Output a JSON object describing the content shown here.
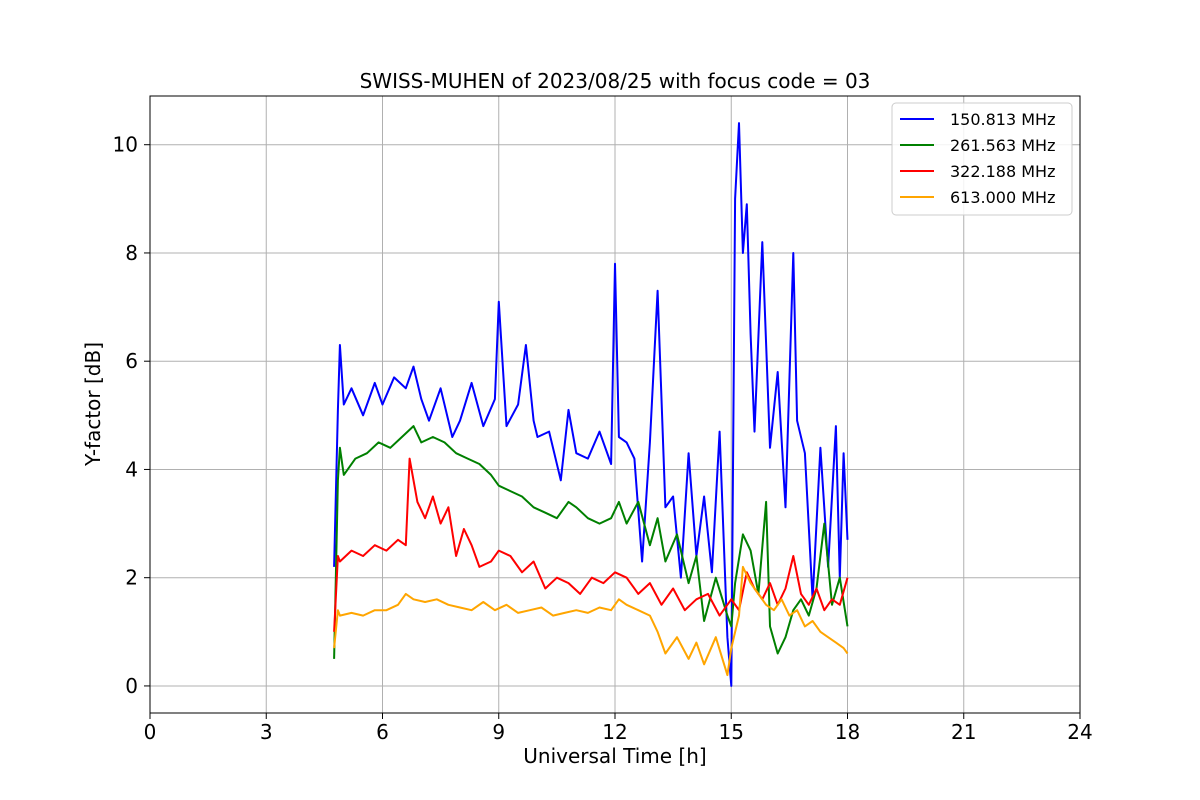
{
  "chart_data": {
    "type": "line",
    "title": "SWISS-MUHEN of 2023/08/25 with focus code = 03",
    "xlabel": "Universal Time [h]",
    "ylabel": "Y-factor [dB]",
    "xlim": [
      0,
      24
    ],
    "ylim": [
      -0.5,
      10.9
    ],
    "xticks": [
      "0",
      "3",
      "6",
      "9",
      "12",
      "15",
      "18",
      "21",
      "24"
    ],
    "yticks": [
      "0",
      "2",
      "4",
      "6",
      "8",
      "10"
    ],
    "grid": true,
    "legend_position": "top-right",
    "series": [
      {
        "name": "150.813 MHz",
        "color": "#0000ff",
        "x": [
          4.75,
          4.85,
          4.9,
          5.0,
          5.2,
          5.5,
          5.8,
          6.0,
          6.3,
          6.6,
          6.8,
          7.0,
          7.2,
          7.5,
          7.8,
          8.0,
          8.3,
          8.6,
          8.9,
          9.0,
          9.2,
          9.5,
          9.7,
          9.9,
          10.0,
          10.3,
          10.6,
          10.8,
          11.0,
          11.3,
          11.6,
          11.9,
          12.0,
          12.1,
          12.3,
          12.5,
          12.7,
          12.9,
          13.1,
          13.3,
          13.5,
          13.7,
          13.9,
          14.1,
          14.3,
          14.5,
          14.7,
          14.9,
          15.0,
          15.1,
          15.2,
          15.3,
          15.4,
          15.5,
          15.6,
          15.8,
          16.0,
          16.2,
          16.4,
          16.6,
          16.7,
          16.9,
          17.1,
          17.3,
          17.5,
          17.7,
          17.8,
          17.9,
          18.0
        ],
        "values": [
          2.2,
          5.1,
          6.3,
          5.2,
          5.5,
          5.0,
          5.6,
          5.2,
          5.7,
          5.5,
          5.9,
          5.3,
          4.9,
          5.5,
          4.6,
          4.9,
          5.6,
          4.8,
          5.3,
          7.1,
          4.8,
          5.2,
          6.3,
          4.9,
          4.6,
          4.7,
          3.8,
          5.1,
          4.3,
          4.2,
          4.7,
          4.1,
          7.8,
          4.6,
          4.5,
          4.2,
          2.3,
          4.5,
          7.3,
          3.3,
          3.5,
          2.0,
          4.3,
          2.4,
          3.5,
          2.1,
          4.7,
          0.9,
          0.0,
          9.0,
          10.4,
          8.0,
          8.9,
          6.5,
          4.7,
          8.2,
          4.4,
          5.8,
          3.3,
          8.0,
          4.9,
          4.3,
          1.6,
          4.4,
          2.2,
          4.8,
          2.0,
          4.3,
          2.7
        ]
      },
      {
        "name": "261.563 MHz",
        "color": "#008000",
        "x": [
          4.75,
          4.85,
          4.9,
          5.0,
          5.3,
          5.6,
          5.9,
          6.2,
          6.5,
          6.8,
          7.0,
          7.3,
          7.6,
          7.9,
          8.2,
          8.5,
          8.8,
          9.0,
          9.3,
          9.6,
          9.9,
          10.2,
          10.5,
          10.8,
          11.0,
          11.3,
          11.6,
          11.9,
          12.1,
          12.3,
          12.6,
          12.9,
          13.1,
          13.3,
          13.6,
          13.9,
          14.1,
          14.3,
          14.6,
          14.9,
          15.0,
          15.1,
          15.3,
          15.5,
          15.7,
          15.9,
          16.0,
          16.2,
          16.4,
          16.6,
          16.8,
          17.0,
          17.2,
          17.4,
          17.6,
          17.8,
          18.0
        ],
        "values": [
          0.5,
          3.8,
          4.4,
          3.9,
          4.2,
          4.3,
          4.5,
          4.4,
          4.6,
          4.8,
          4.5,
          4.6,
          4.5,
          4.3,
          4.2,
          4.1,
          3.9,
          3.7,
          3.6,
          3.5,
          3.3,
          3.2,
          3.1,
          3.4,
          3.3,
          3.1,
          3.0,
          3.1,
          3.4,
          3.0,
          3.4,
          2.6,
          3.1,
          2.3,
          2.8,
          1.9,
          2.4,
          1.2,
          2.0,
          1.3,
          1.1,
          1.9,
          2.8,
          2.5,
          1.7,
          3.4,
          1.1,
          0.6,
          0.9,
          1.4,
          1.6,
          1.3,
          1.8,
          3.0,
          1.5,
          2.0,
          1.1
        ]
      },
      {
        "name": "322.188 MHz",
        "color": "#ff0000",
        "x": [
          4.75,
          4.85,
          4.9,
          5.2,
          5.5,
          5.8,
          6.1,
          6.4,
          6.6,
          6.7,
          6.9,
          7.1,
          7.3,
          7.5,
          7.7,
          7.9,
          8.1,
          8.3,
          8.5,
          8.8,
          9.0,
          9.3,
          9.6,
          9.9,
          10.2,
          10.5,
          10.8,
          11.1,
          11.4,
          11.7,
          12.0,
          12.3,
          12.6,
          12.9,
          13.2,
          13.5,
          13.8,
          14.1,
          14.4,
          14.7,
          15.0,
          15.2,
          15.4,
          15.6,
          15.8,
          16.0,
          16.2,
          16.4,
          16.6,
          16.8,
          17.0,
          17.2,
          17.4,
          17.6,
          17.8,
          18.0
        ],
        "values": [
          1.0,
          2.4,
          2.3,
          2.5,
          2.4,
          2.6,
          2.5,
          2.7,
          2.6,
          4.2,
          3.4,
          3.1,
          3.5,
          3.0,
          3.3,
          2.4,
          2.9,
          2.6,
          2.2,
          2.3,
          2.5,
          2.4,
          2.1,
          2.3,
          1.8,
          2.0,
          1.9,
          1.7,
          2.0,
          1.9,
          2.1,
          2.0,
          1.7,
          1.9,
          1.5,
          1.8,
          1.4,
          1.6,
          1.7,
          1.3,
          1.6,
          1.4,
          2.1,
          1.8,
          1.6,
          1.9,
          1.5,
          1.8,
          2.4,
          1.7,
          1.5,
          1.8,
          1.4,
          1.6,
          1.5,
          2.0
        ]
      },
      {
        "name": "613.000 MHz",
        "color": "#ffa500",
        "x": [
          4.75,
          4.85,
          4.9,
          5.2,
          5.5,
          5.8,
          6.1,
          6.4,
          6.6,
          6.8,
          7.1,
          7.4,
          7.7,
          8.0,
          8.3,
          8.6,
          8.9,
          9.2,
          9.5,
          9.8,
          10.1,
          10.4,
          10.7,
          11.0,
          11.3,
          11.6,
          11.9,
          12.1,
          12.3,
          12.6,
          12.9,
          13.1,
          13.3,
          13.6,
          13.9,
          14.1,
          14.3,
          14.6,
          14.9,
          15.0,
          15.2,
          15.3,
          15.5,
          15.7,
          15.9,
          16.1,
          16.3,
          16.5,
          16.7,
          16.9,
          17.1,
          17.3,
          17.5,
          17.7,
          17.9,
          18.0
        ],
        "values": [
          0.7,
          1.4,
          1.3,
          1.35,
          1.3,
          1.4,
          1.4,
          1.5,
          1.7,
          1.6,
          1.55,
          1.6,
          1.5,
          1.45,
          1.4,
          1.55,
          1.4,
          1.5,
          1.35,
          1.4,
          1.45,
          1.3,
          1.35,
          1.4,
          1.35,
          1.45,
          1.4,
          1.6,
          1.5,
          1.4,
          1.3,
          1.0,
          0.6,
          0.9,
          0.5,
          0.8,
          0.4,
          0.9,
          0.2,
          0.7,
          1.3,
          2.2,
          1.9,
          1.7,
          1.5,
          1.4,
          1.6,
          1.3,
          1.4,
          1.1,
          1.2,
          1.0,
          0.9,
          0.8,
          0.7,
          0.6
        ]
      }
    ]
  }
}
